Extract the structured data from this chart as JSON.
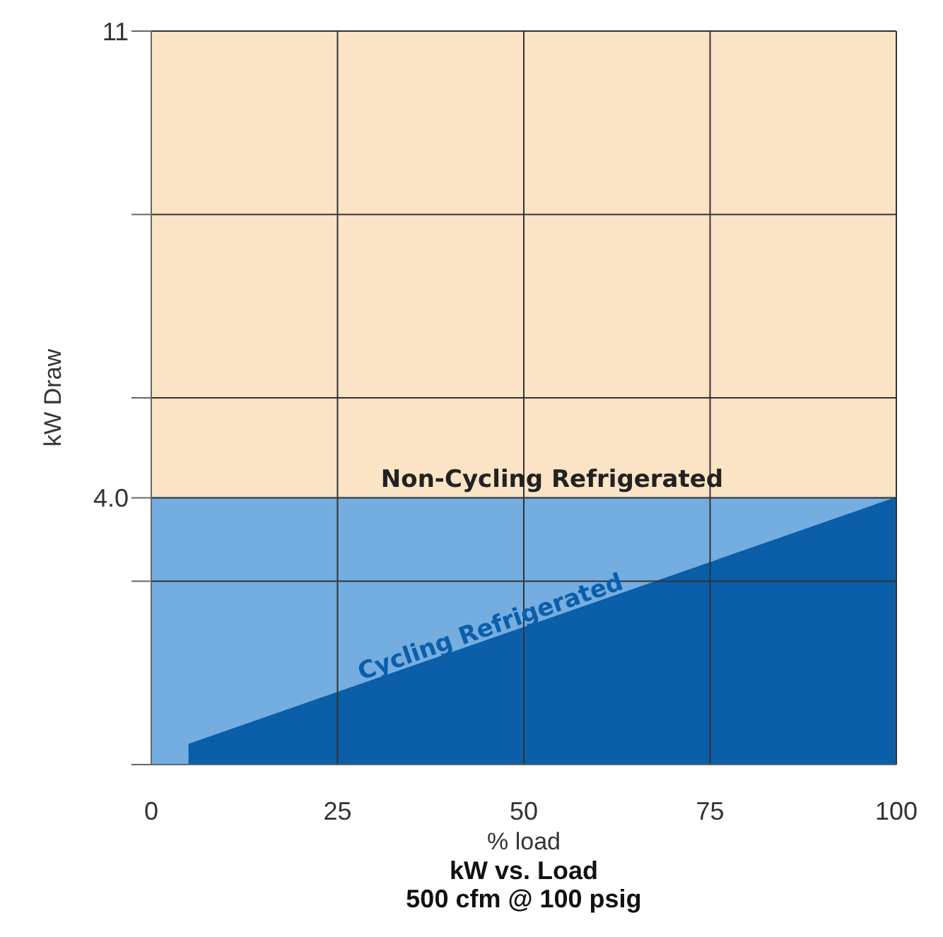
{
  "chart_data": {
    "type": "area",
    "title": "kW vs. Load",
    "subtitle": "500 cfm @ 100 psig",
    "xlabel": "% load",
    "ylabel": "kW Draw",
    "x": [
      0,
      5,
      100
    ],
    "series": [
      {
        "name": "Non-Cycling Refrigerated",
        "color": "#74ade0",
        "values": [
          4.0,
          4.0,
          4.0
        ]
      },
      {
        "name": "Cycling Refrigerated",
        "color": "#0b5ea8",
        "values": [
          null,
          0.3,
          4.0
        ]
      }
    ],
    "xlim": [
      0,
      100
    ],
    "xticks": [
      0,
      25,
      50,
      75,
      100
    ],
    "ylim": [
      0,
      11
    ],
    "yticks": [
      {
        "value": 0,
        "label": null
      },
      {
        "value": 2.75,
        "label": null
      },
      {
        "value": 4.0,
        "label": "4.0"
      },
      {
        "value": 5.5,
        "label": null
      },
      {
        "value": 8.25,
        "label": null
      },
      11
    ],
    "grid": true,
    "legend": false
  }
}
